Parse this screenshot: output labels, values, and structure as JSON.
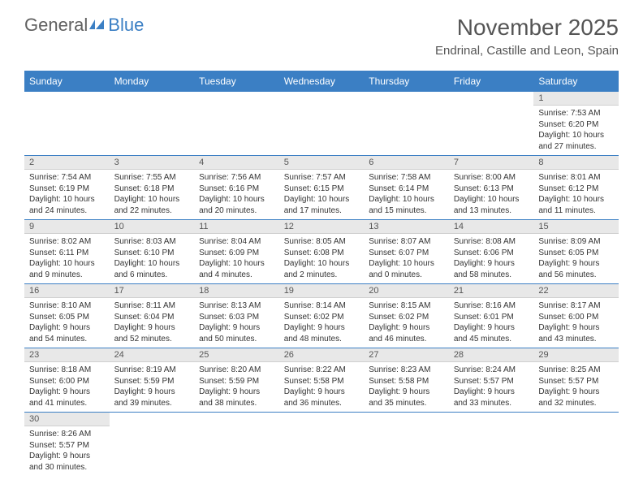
{
  "logo": {
    "part1": "General",
    "part2": "Blue"
  },
  "title": "November 2025",
  "location": "Endrinal, Castille and Leon, Spain",
  "colors": {
    "header_bg": "#3b7fc4",
    "header_text": "#ffffff",
    "daynum_bg": "#e8e8e8",
    "row_border": "#3b7fc4",
    "body_text": "#333333",
    "title_text": "#555555"
  },
  "day_headers": [
    "Sunday",
    "Monday",
    "Tuesday",
    "Wednesday",
    "Thursday",
    "Friday",
    "Saturday"
  ],
  "weeks": [
    [
      null,
      null,
      null,
      null,
      null,
      null,
      {
        "n": "1",
        "sr": "7:53 AM",
        "ss": "6:20 PM",
        "dl": "10 hours and 27 minutes."
      }
    ],
    [
      {
        "n": "2",
        "sr": "7:54 AM",
        "ss": "6:19 PM",
        "dl": "10 hours and 24 minutes."
      },
      {
        "n": "3",
        "sr": "7:55 AM",
        "ss": "6:18 PM",
        "dl": "10 hours and 22 minutes."
      },
      {
        "n": "4",
        "sr": "7:56 AM",
        "ss": "6:16 PM",
        "dl": "10 hours and 20 minutes."
      },
      {
        "n": "5",
        "sr": "7:57 AM",
        "ss": "6:15 PM",
        "dl": "10 hours and 17 minutes."
      },
      {
        "n": "6",
        "sr": "7:58 AM",
        "ss": "6:14 PM",
        "dl": "10 hours and 15 minutes."
      },
      {
        "n": "7",
        "sr": "8:00 AM",
        "ss": "6:13 PM",
        "dl": "10 hours and 13 minutes."
      },
      {
        "n": "8",
        "sr": "8:01 AM",
        "ss": "6:12 PM",
        "dl": "10 hours and 11 minutes."
      }
    ],
    [
      {
        "n": "9",
        "sr": "8:02 AM",
        "ss": "6:11 PM",
        "dl": "10 hours and 9 minutes."
      },
      {
        "n": "10",
        "sr": "8:03 AM",
        "ss": "6:10 PM",
        "dl": "10 hours and 6 minutes."
      },
      {
        "n": "11",
        "sr": "8:04 AM",
        "ss": "6:09 PM",
        "dl": "10 hours and 4 minutes."
      },
      {
        "n": "12",
        "sr": "8:05 AM",
        "ss": "6:08 PM",
        "dl": "10 hours and 2 minutes."
      },
      {
        "n": "13",
        "sr": "8:07 AM",
        "ss": "6:07 PM",
        "dl": "10 hours and 0 minutes."
      },
      {
        "n": "14",
        "sr": "8:08 AM",
        "ss": "6:06 PM",
        "dl": "9 hours and 58 minutes."
      },
      {
        "n": "15",
        "sr": "8:09 AM",
        "ss": "6:05 PM",
        "dl": "9 hours and 56 minutes."
      }
    ],
    [
      {
        "n": "16",
        "sr": "8:10 AM",
        "ss": "6:05 PM",
        "dl": "9 hours and 54 minutes."
      },
      {
        "n": "17",
        "sr": "8:11 AM",
        "ss": "6:04 PM",
        "dl": "9 hours and 52 minutes."
      },
      {
        "n": "18",
        "sr": "8:13 AM",
        "ss": "6:03 PM",
        "dl": "9 hours and 50 minutes."
      },
      {
        "n": "19",
        "sr": "8:14 AM",
        "ss": "6:02 PM",
        "dl": "9 hours and 48 minutes."
      },
      {
        "n": "20",
        "sr": "8:15 AM",
        "ss": "6:02 PM",
        "dl": "9 hours and 46 minutes."
      },
      {
        "n": "21",
        "sr": "8:16 AM",
        "ss": "6:01 PM",
        "dl": "9 hours and 45 minutes."
      },
      {
        "n": "22",
        "sr": "8:17 AM",
        "ss": "6:00 PM",
        "dl": "9 hours and 43 minutes."
      }
    ],
    [
      {
        "n": "23",
        "sr": "8:18 AM",
        "ss": "6:00 PM",
        "dl": "9 hours and 41 minutes."
      },
      {
        "n": "24",
        "sr": "8:19 AM",
        "ss": "5:59 PM",
        "dl": "9 hours and 39 minutes."
      },
      {
        "n": "25",
        "sr": "8:20 AM",
        "ss": "5:59 PM",
        "dl": "9 hours and 38 minutes."
      },
      {
        "n": "26",
        "sr": "8:22 AM",
        "ss": "5:58 PM",
        "dl": "9 hours and 36 minutes."
      },
      {
        "n": "27",
        "sr": "8:23 AM",
        "ss": "5:58 PM",
        "dl": "9 hours and 35 minutes."
      },
      {
        "n": "28",
        "sr": "8:24 AM",
        "ss": "5:57 PM",
        "dl": "9 hours and 33 minutes."
      },
      {
        "n": "29",
        "sr": "8:25 AM",
        "ss": "5:57 PM",
        "dl": "9 hours and 32 minutes."
      }
    ],
    [
      {
        "n": "30",
        "sr": "8:26 AM",
        "ss": "5:57 PM",
        "dl": "9 hours and 30 minutes."
      },
      null,
      null,
      null,
      null,
      null,
      null
    ]
  ],
  "labels": {
    "sunrise": "Sunrise: ",
    "sunset": "Sunset: ",
    "daylight": "Daylight: "
  }
}
